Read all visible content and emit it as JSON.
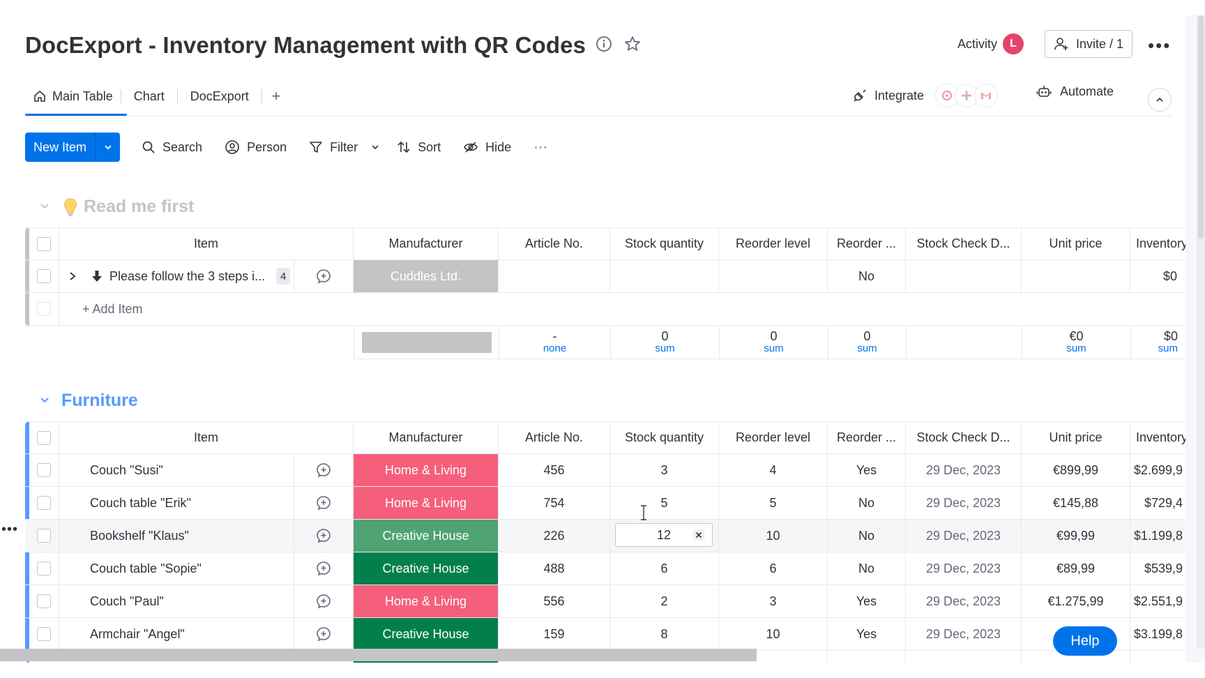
{
  "board": {
    "title": "DocExport - Inventory Management with QR Codes",
    "activity_label": "Activity",
    "activity_avatar": "L",
    "invite_label": "Invite / 1",
    "integrate_label": "Integrate",
    "automate_label": "Automate"
  },
  "tabs": [
    {
      "label": "Main Table",
      "icon": "home-icon",
      "active": true
    },
    {
      "label": "Chart",
      "active": false
    },
    {
      "label": "DocExport",
      "active": false
    }
  ],
  "add_view_label": "+",
  "toolbar": {
    "new_item": "New Item",
    "search": "Search",
    "person": "Person",
    "filter": "Filter",
    "sort": "Sort",
    "hide": "Hide",
    "more": "···"
  },
  "columns": [
    "Item",
    "Manufacturer",
    "Article No.",
    "Stock quantity",
    "Reorder level",
    "Reorder ...",
    "Stock Check D...",
    "Unit price",
    "Inventory V"
  ],
  "groups": {
    "readme": {
      "title": "Read me first",
      "color": "#c4c4c4",
      "row": {
        "item": "Please follow the 3 steps i...",
        "subitems": "4",
        "manufacturer": "Cuddles Ltd.",
        "reorder": "No",
        "inventory": "$0"
      },
      "add_item": "+ Add Item",
      "summary": {
        "article": {
          "v": "-",
          "u": "none"
        },
        "stock": {
          "v": "0",
          "u": "sum"
        },
        "reorder_level": {
          "v": "0",
          "u": "sum"
        },
        "reorder": {
          "v": "0",
          "u": "sum"
        },
        "unit_price": {
          "v": "€0",
          "u": "sum"
        },
        "inventory": {
          "v": "$0",
          "u": "sum"
        }
      }
    },
    "furniture": {
      "title": "Furniture",
      "color": "#579bfc",
      "rows": [
        {
          "item": "Couch \"Susi\"",
          "manufacturer": "Home & Living",
          "mcolor": "#f65f7c",
          "article": "456",
          "stock": "3",
          "reorder_level": "4",
          "reorder": "Yes",
          "date": "29 Dec, 2023",
          "price": "€899,99",
          "inventory": "$2.699,9"
        },
        {
          "item": "Couch table \"Erik\"",
          "manufacturer": "Home & Living",
          "mcolor": "#f65f7c",
          "article": "754",
          "stock": "5",
          "reorder_level": "5",
          "reorder": "No",
          "date": "29 Dec, 2023",
          "price": "€145,88",
          "inventory": "$729,4"
        },
        {
          "item": "Bookshelf \"Klaus\"",
          "manufacturer": "Creative House",
          "mcolor": "#4fa373",
          "article": "226",
          "stock": "12",
          "reorder_level": "10",
          "reorder": "No",
          "date": "29 Dec, 2023",
          "price": "€99,99",
          "inventory": "$1.199,8"
        },
        {
          "item": "Couch table \"Sopie\"",
          "manufacturer": "Creative House",
          "mcolor": "#037f4c",
          "article": "488",
          "stock": "6",
          "reorder_level": "6",
          "reorder": "No",
          "date": "29 Dec, 2023",
          "price": "€89,99",
          "inventory": "$539,9"
        },
        {
          "item": "Couch \"Paul\"",
          "manufacturer": "Home & Living",
          "mcolor": "#f65f7c",
          "article": "556",
          "stock": "2",
          "reorder_level": "3",
          "reorder": "Yes",
          "date": "29 Dec, 2023",
          "price": "€1.275,99",
          "inventory": "$2.551,9"
        },
        {
          "item": "Armchair \"Angel\"",
          "manufacturer": "Creative House",
          "mcolor": "#037f4c",
          "article": "159",
          "stock": "8",
          "reorder_level": "10",
          "reorder": "Yes",
          "date": "29 Dec, 2023",
          "price": "",
          "inventory": "$3.199,8"
        }
      ]
    }
  },
  "help_label": "Help",
  "colors": {
    "primary": "#0073ea",
    "border": "#e6e9ef"
  }
}
